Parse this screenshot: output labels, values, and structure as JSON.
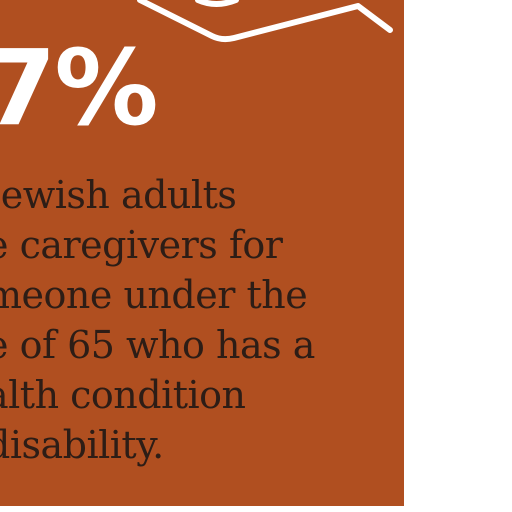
{
  "panel": {
    "background_color": "#b04f20",
    "stat_text": "7%",
    "caption_lines": [
      "Jewish adults",
      "e caregivers for",
      "meone under the",
      "e of 65 who has a",
      "alth condition",
      "disability."
    ],
    "stat_color": "#ffffff",
    "caption_color": "#2d1d16",
    "decoration": "white-line-graphic"
  }
}
